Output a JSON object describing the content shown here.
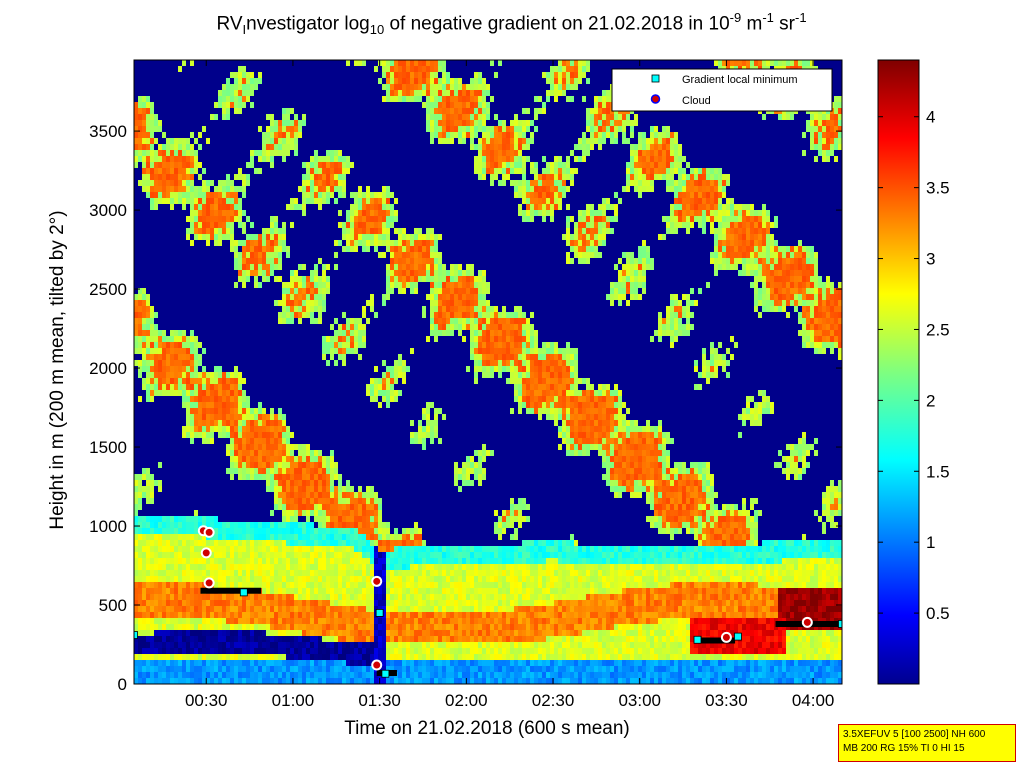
{
  "chart_data": {
    "type": "heatmap",
    "title": {
      "pre": "RV",
      "sub1": "I",
      "mid": "nvestigator log",
      "sub2": "10",
      "mid2": " of negative gradient on 21.02.2018 in 10",
      "sup1": "-9",
      "mid3": " m",
      "sup2": "-1",
      "mid4": " sr",
      "sup3": "-1"
    },
    "xlabel": "Time on 21.02.2018 (600 s mean)",
    "ylabel": "Height in m (200 m mean, tilted by 2°)",
    "x_range_minutes": [
      5,
      250
    ],
    "x_ticks": [
      {
        "minutes": 30,
        "label": "00:30"
      },
      {
        "minutes": 60,
        "label": "01:00"
      },
      {
        "minutes": 90,
        "label": "01:30"
      },
      {
        "minutes": 120,
        "label": "02:00"
      },
      {
        "minutes": 150,
        "label": "02:30"
      },
      {
        "minutes": 180,
        "label": "03:00"
      },
      {
        "minutes": 210,
        "label": "03:30"
      },
      {
        "minutes": 240,
        "label": "04:00"
      }
    ],
    "y_range": [
      0,
      3950
    ],
    "y_ticks": [
      0,
      500,
      1000,
      1500,
      2000,
      2500,
      3000,
      3500
    ],
    "colorbar": {
      "range": [
        0,
        4.4
      ],
      "ticks": [
        0.5,
        1,
        1.5,
        2,
        2.5,
        3,
        3.5,
        4
      ],
      "colormap": "jet"
    },
    "legend": {
      "placement": "top-right",
      "entries": [
        {
          "label": "Gradient local minimum",
          "marker": "square",
          "color": "#00ffff"
        },
        {
          "label": "Cloud",
          "marker": "circle",
          "color": "#cc0000"
        }
      ]
    },
    "boundary_layer_top_m": [
      [
        5,
        1080
      ],
      [
        30,
        1050
      ],
      [
        60,
        1010
      ],
      [
        80,
        1000
      ],
      [
        90,
        850
      ],
      [
        120,
        880
      ],
      [
        150,
        900
      ],
      [
        180,
        870
      ],
      [
        210,
        880
      ],
      [
        230,
        900
      ],
      [
        250,
        920
      ]
    ],
    "gradient_local_minimum": [
      {
        "minutes": 5,
        "height": 310
      },
      {
        "minutes": 31,
        "height": 640
      },
      {
        "minutes": 43,
        "height": 580
      },
      {
        "minutes": 90,
        "height": 450
      },
      {
        "minutes": 92,
        "height": 65
      },
      {
        "minutes": 200,
        "height": 280
      },
      {
        "minutes": 214,
        "height": 300
      },
      {
        "minutes": 250,
        "height": 380
      }
    ],
    "cloud": [
      {
        "minutes": 29,
        "height": 970
      },
      {
        "minutes": 31,
        "height": 960
      },
      {
        "minutes": 30,
        "height": 830
      },
      {
        "minutes": 31,
        "height": 640
      },
      {
        "minutes": 89,
        "height": 650
      },
      {
        "minutes": 89,
        "height": 120
      },
      {
        "minutes": 210,
        "height": 295
      },
      {
        "minutes": 238,
        "height": 390
      }
    ],
    "dark_bands": [
      {
        "x0": 28,
        "x1": 49,
        "height": 590
      },
      {
        "x0": 89,
        "x1": 96,
        "height": 70
      },
      {
        "x0": 199,
        "x1": 213,
        "height": 275
      },
      {
        "x0": 227,
        "x1": 250,
        "height": 380
      }
    ]
  },
  "infobox": {
    "line1": "3.5XEFUV 5 [100 2500] NH 600",
    "line2": "MB 200 RG 15% TI 0 HI 15"
  }
}
